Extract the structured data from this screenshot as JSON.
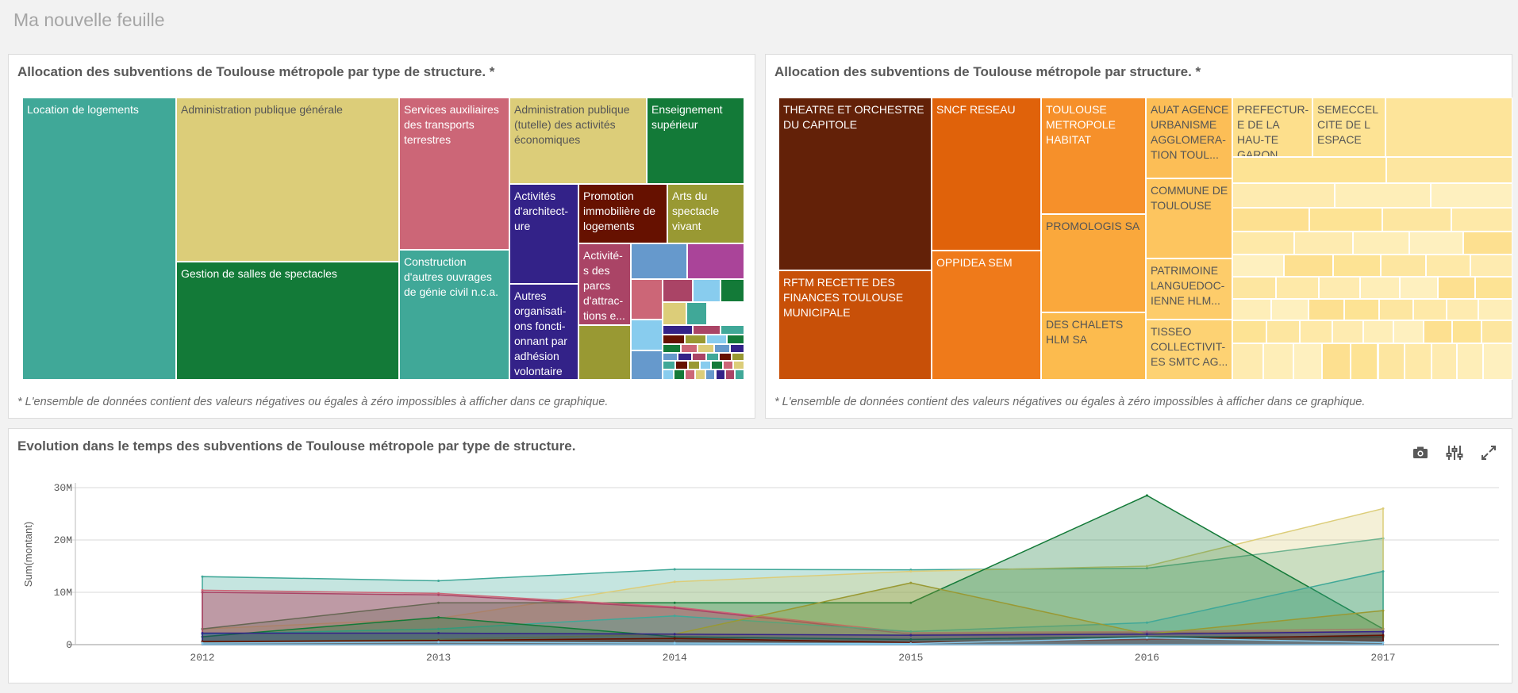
{
  "sheet": {
    "title": "Ma nouvelle feuille"
  },
  "treemap_type": {
    "title": "Allocation des subventions de Toulouse métropole par type de structure. *",
    "footnote": "* L'ensemble de données contient des valeurs négatives ou égales à zéro impossibles à afficher dans ce graphique.",
    "tiles": [
      {
        "label": "Location de logements",
        "color": "#40a898"
      },
      {
        "label": "Administration publique générale",
        "color": "#dccd79"
      },
      {
        "label": "Gestion de salles de spectacles",
        "color": "#137a38"
      },
      {
        "label": "Services auxiliaires des transports terrestres",
        "color": "#cc6677"
      },
      {
        "label": "Construction d'autres ouvrages de génie civil n.c.a.",
        "color": "#40a898"
      },
      {
        "label": "Administration publique (tutelle) des activités économiques",
        "color": "#dccd79"
      },
      {
        "label": "Enseignement supérieur",
        "color": "#137a38"
      },
      {
        "label": "Activités d'architect-ure",
        "color": "#332288"
      },
      {
        "label": "Promotion immobilière de logements",
        "color": "#661100"
      },
      {
        "label": "Arts du spectacle vivant",
        "color": "#999933"
      },
      {
        "label": "Autres organisati-ons foncti-onnant par adhésion volontaire",
        "color": "#332288"
      },
      {
        "label": "Activité-s des parcs d'attrac-tions e...",
        "color": "#aa4466"
      }
    ]
  },
  "treemap_structure": {
    "title": "Allocation des subventions de Toulouse métropole par structure. *",
    "footnote": "* L'ensemble de données contient des valeurs négatives ou égales à zéro impossibles à afficher dans ce graphique.",
    "tiles": [
      {
        "label": "THEATRE ET ORCHESTRE DU CAPITOLE",
        "color": "#632108"
      },
      {
        "label": "RFTM RECETTE DES FINANCES TOULOUSE MUNICIPALE",
        "color": "#c85008"
      },
      {
        "label": "SNCF RESEAU",
        "color": "#e0620a"
      },
      {
        "label": "OPPIDEA SEM",
        "color": "#ef7a1a"
      },
      {
        "label": "TOULOUSE METROPOLE HABITAT",
        "color": "#f6902a"
      },
      {
        "label": "PROMOLOGIS SA",
        "color": "#faa83c"
      },
      {
        "label": "DES CHALETS HLM SA",
        "color": "#fcbb4e"
      },
      {
        "label": "AUAT AGENCE URBANISME AGGLOMERA-TION TOUL...",
        "color": "#fcbe56"
      },
      {
        "label": "COMMUNE DE TOULOUSE",
        "color": "#fdc55f"
      },
      {
        "label": "PATRIMOINE LANGUEDOC-IENNE HLM...",
        "color": "#fdcc6a"
      },
      {
        "label": "TISSEO COLLECTIVIT-ES SMTC AG...",
        "color": "#fdd273"
      },
      {
        "label": "PREFECTUR-E DE LA HAU-TE GARON...",
        "color": "#fddf8c"
      },
      {
        "label": "SEMECCEL CITE DE L ESPACE",
        "color": "#fde394"
      }
    ]
  },
  "timeline": {
    "title": "Evolution dans le temps des subventions de Toulouse métropole par type de structure.",
    "tools": {
      "snapshot": "camera-icon",
      "adjust": "sliders-icon",
      "expand": "expand-icon"
    },
    "chart_data": {
      "type": "area",
      "title": "Evolution dans le temps des subventions de Toulouse métropole par type de structure.",
      "xlabel": "",
      "ylabel": "Sum(montant)",
      "x": [
        "2012",
        "2013",
        "2014",
        "2015",
        "2016",
        "2017"
      ],
      "y_ticks": [
        "0",
        "10M",
        "20M",
        "30M"
      ],
      "ylim": [
        0,
        30000000
      ],
      "grid": true,
      "series": [
        {
          "color": "#40a898",
          "values": [
            13000000,
            12200000,
            14400000,
            14300000,
            14600000,
            20300000
          ]
        },
        {
          "color": "#dccd79",
          "values": [
            3000000,
            5000000,
            12000000,
            14000000,
            15000000,
            26000000
          ]
        },
        {
          "color": "#137a38",
          "values": [
            3000000,
            8000000,
            8000000,
            8000000,
            28500000,
            3000000
          ]
        },
        {
          "color": "#cc6677",
          "values": [
            10400000,
            9800000,
            7200000,
            2300000,
            2500000,
            3000000
          ]
        },
        {
          "color": "#aa4466",
          "values": [
            10000000,
            9500000,
            7000000,
            2000000,
            2300000,
            2500000
          ]
        },
        {
          "color": "#40a898",
          "values": [
            2000000,
            3000000,
            5500000,
            2500000,
            4200000,
            14000000
          ]
        },
        {
          "color": "#999933",
          "values": [
            500000,
            1000000,
            2000000,
            11800000,
            2000000,
            6500000
          ]
        },
        {
          "color": "#137a38",
          "values": [
            1500000,
            5200000,
            1500000,
            1000000,
            1500000,
            1500000
          ]
        },
        {
          "color": "#332288",
          "values": [
            2200000,
            2200000,
            2000000,
            1800000,
            2000000,
            2500000
          ]
        },
        {
          "color": "#661100",
          "values": [
            600000,
            800000,
            1200000,
            400000,
            1000000,
            1800000
          ]
        },
        {
          "color": "#88ccee",
          "values": [
            300000,
            500000,
            300000,
            200000,
            1300000,
            400000
          ]
        }
      ]
    }
  }
}
